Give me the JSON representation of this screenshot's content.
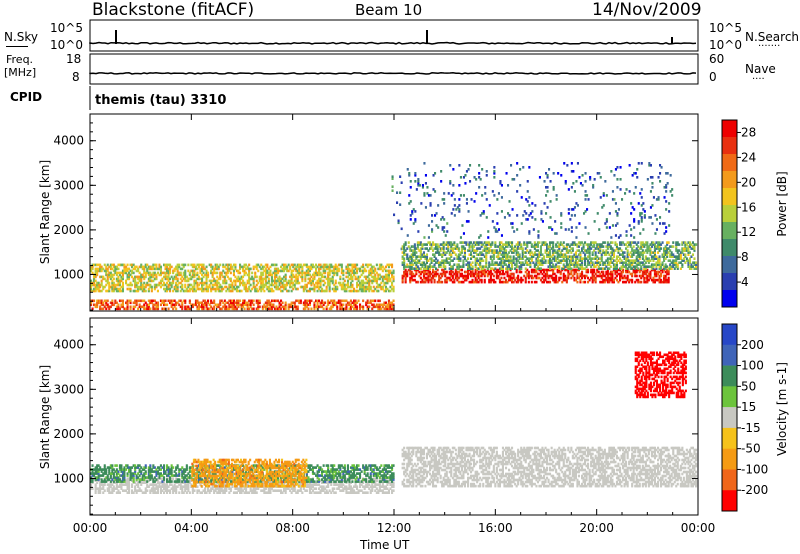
{
  "header": {
    "station": "Blackstone (fitACF)",
    "beam": "Beam 10",
    "date": "14/Nov/2009"
  },
  "summary_panels": {
    "nsky": {
      "left_label": "N.Sky",
      "right_label": "N.Search",
      "left_ticks": [
        "10^5",
        "10^0"
      ],
      "right_ticks": [
        "10^5",
        "10^0"
      ]
    },
    "freq": {
      "left_label_top": "Freq.",
      "left_label_bottom": "[MHz]",
      "right_label": "Nave",
      "left_ticks": [
        "18",
        "8"
      ],
      "right_ticks": [
        "60",
        "0"
      ]
    },
    "cpid": {
      "label": "CPID",
      "value": "themis (tau) 3310"
    }
  },
  "chart_data": [
    {
      "type": "heatmap",
      "name": "power",
      "ylabel": "Slant Range [km]",
      "xlabel": "Time UT",
      "x_ticks": [
        "00:00",
        "04:00",
        "08:00",
        "12:00",
        "16:00",
        "20:00",
        "00:00"
      ],
      "xlim_hours": [
        0,
        24
      ],
      "y_ticks": [
        "1000",
        "2000",
        "3000",
        "4000"
      ],
      "ylim": [
        180,
        4600
      ],
      "colorbar": {
        "label": "Power [dB]",
        "ticks": [
          "4",
          "8",
          "12",
          "16",
          "20",
          "24",
          "28"
        ],
        "range": [
          0,
          30
        ],
        "colors": [
          "#0000ee",
          "#2a3fb0",
          "#3e6a9c",
          "#3f8a6a",
          "#67b060",
          "#b9cf3a",
          "#f2c41e",
          "#f39a1c",
          "#f06a16",
          "#e83010",
          "#ee0000"
        ]
      },
      "features": [
        {
          "label": "morning ionospheric scatter",
          "t_hours": [
            0.0,
            12.0
          ],
          "range_km": [
            600,
            1200
          ],
          "typical_power_db": 16
        },
        {
          "label": "near-range ground scatter",
          "t_hours": [
            0.0,
            12.0
          ],
          "range_km": [
            200,
            400
          ],
          "typical_power_db": 24
        },
        {
          "label": "onset spike",
          "t_hours": [
            11.9,
            12.3
          ],
          "range_km": [
            1500,
            3200
          ],
          "typical_power_db": 8
        },
        {
          "label": "afternoon strong band",
          "t_hours": [
            12.3,
            22.8
          ],
          "range_km": [
            800,
            1100
          ],
          "typical_power_db": 28
        },
        {
          "label": "afternoon upper band",
          "t_hours": [
            12.3,
            23.9
          ],
          "range_km": [
            1100,
            1700
          ],
          "typical_power_db": 12
        },
        {
          "label": "sparse high-range echoes",
          "t_hours": [
            12.5,
            23.0
          ],
          "range_km": [
            1800,
            3500
          ],
          "typical_power_db": 6
        }
      ]
    },
    {
      "type": "heatmap",
      "name": "velocity",
      "ylabel": "Slant Range [km]",
      "xlabel": "Time UT",
      "x_ticks": [
        "00:00",
        "04:00",
        "08:00",
        "12:00",
        "16:00",
        "20:00",
        "00:00"
      ],
      "xlim_hours": [
        0,
        24
      ],
      "y_ticks": [
        "1000",
        "2000",
        "3000",
        "4000"
      ],
      "ylim": [
        180,
        4600
      ],
      "colorbar": {
        "label": "Velocity [m s-1]",
        "ticks": [
          "200",
          "100",
          "50",
          "15",
          "-15",
          "-50",
          "-100",
          "-200"
        ],
        "range": [
          -250,
          250
        ],
        "colors": [
          "#2747c7",
          "#3f64b8",
          "#3c8c5a",
          "#6cc43c",
          "#c8c8c2",
          "#f5c21b",
          "#f59b14",
          "#f0661a",
          "#ff0000"
        ]
      },
      "features": [
        {
          "label": "ground scatter (grey)",
          "t_hours": [
            0.0,
            12.0
          ],
          "range_km": [
            650,
            1000
          ],
          "typical_velocity": 0
        },
        {
          "label": "positive flow",
          "t_hours": [
            0.0,
            12.0
          ],
          "range_km": [
            900,
            1300
          ],
          "typical_velocity": 50
        },
        {
          "label": "negative flow patches",
          "t_hours": [
            4.0,
            8.5
          ],
          "range_km": [
            800,
            1400
          ],
          "typical_velocity": -50
        },
        {
          "label": "afternoon ground scatter",
          "t_hours": [
            12.3,
            23.9
          ],
          "range_km": [
            800,
            1700
          ],
          "typical_velocity": 0
        },
        {
          "label": "late red echoes",
          "t_hours": [
            21.5,
            23.5
          ],
          "range_km": [
            2800,
            3800
          ],
          "typical_velocity": -200
        }
      ]
    }
  ]
}
